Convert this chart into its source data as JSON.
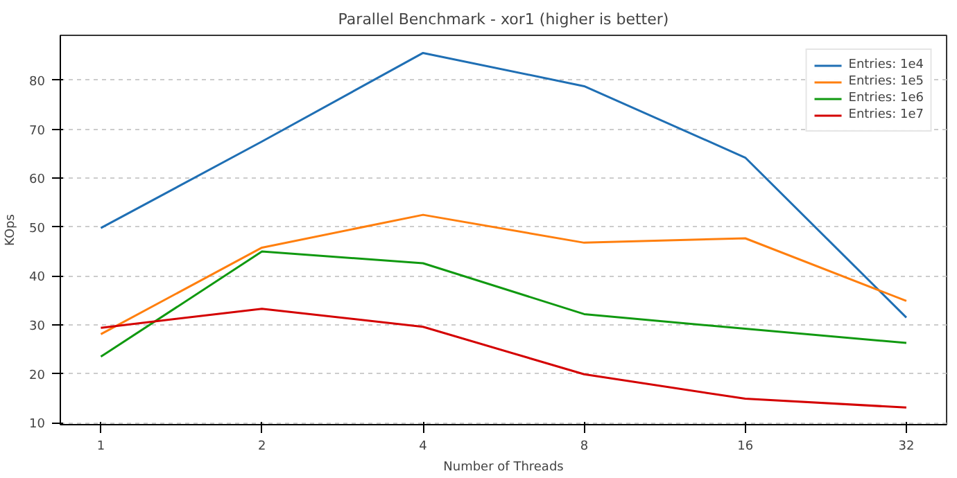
{
  "chart_data": {
    "type": "line",
    "title": "Parallel Benchmark - xor1 (higher is better)",
    "xlabel": "Number of Threads",
    "ylabel": "KOps",
    "x": [
      1,
      2,
      4,
      8,
      16,
      32
    ],
    "log": "x",
    "xlim": [
      0.84,
      38.05
    ],
    "xticks": [
      1,
      2,
      4,
      8,
      16,
      32
    ],
    "ylim": [
      9.6,
      89.2
    ],
    "yticks": [
      10,
      20,
      30,
      40,
      50,
      60,
      70,
      80
    ],
    "grid": "y",
    "legend": "top right",
    "line_style": "solid",
    "series": [
      {
        "name": "Entries: 1e4",
        "color": "#1f6fb4",
        "values": [
          49.8,
          67.5,
          85.6,
          78.8,
          64.2,
          31.5
        ]
      },
      {
        "name": "Entries: 1e5",
        "color": "#ff7f0e",
        "values": [
          28.1,
          45.8,
          52.5,
          46.8,
          47.7,
          34.9
        ]
      },
      {
        "name": "Entries: 1e6",
        "color": "#109910",
        "values": [
          23.5,
          45.0,
          42.6,
          32.2,
          29.2,
          26.3
        ]
      },
      {
        "name": "Entries: 1e7",
        "color": "#d40000",
        "values": [
          29.4,
          33.3,
          29.6,
          19.9,
          14.9,
          13.1
        ]
      }
    ]
  }
}
